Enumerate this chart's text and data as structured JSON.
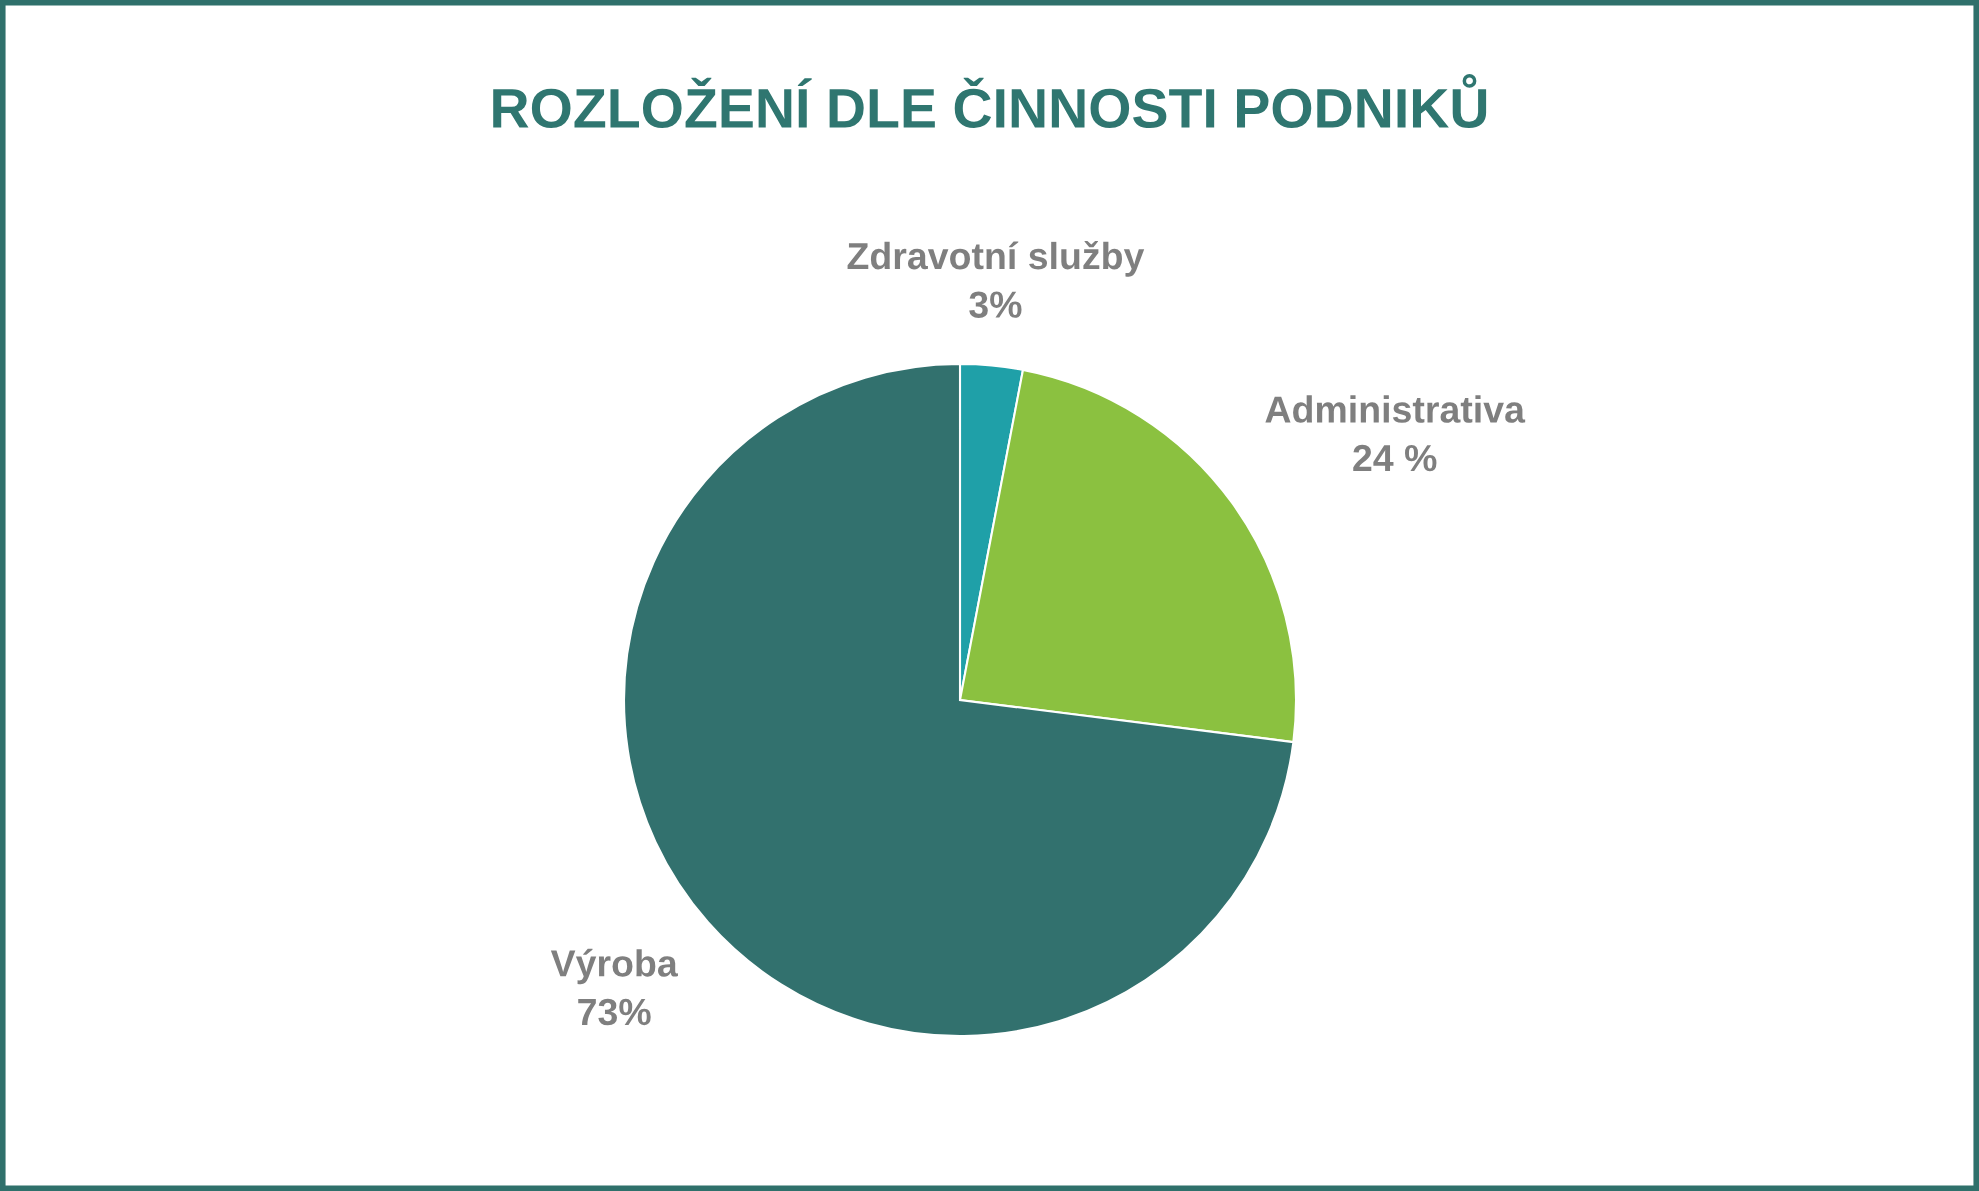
{
  "chart_data": {
    "type": "pie",
    "title": "ROZLOŽENÍ DLE ČINNOSTI PODNIKŮ",
    "categories": [
      "Zdravotní služby",
      "Administrativa",
      "Výroba"
    ],
    "values": [
      3,
      24,
      73
    ],
    "colors": [
      "#1fa0a8",
      "#8bc140",
      "#32716e"
    ],
    "value_labels": [
      "3%",
      "24 %",
      "73%"
    ]
  }
}
